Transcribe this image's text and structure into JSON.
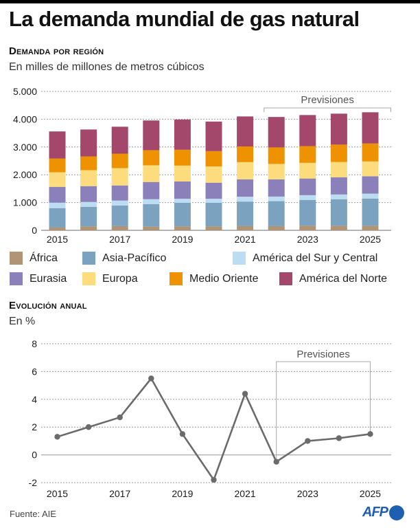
{
  "title": "La demanda mundial de gas natural",
  "section1": {
    "title": "Demanda por región",
    "subtitle": "En milles de millones de metros cúbicos"
  },
  "section2": {
    "title": "Evolución anual",
    "subtitle": "En %"
  },
  "legend": [
    {
      "label": "África",
      "color": "#b09474"
    },
    {
      "label": "Asia-Pacífico",
      "color": "#7ba3bf"
    },
    {
      "label": "América del Sur y Central",
      "color": "#bcdcf2"
    },
    {
      "label": "Eurasia",
      "color": "#8c80bb"
    },
    {
      "label": "Europa",
      "color": "#fcdc7c"
    },
    {
      "label": "Medio Oriente",
      "color": "#ef9200"
    },
    {
      "label": "América del Norte",
      "color": "#a3476b"
    }
  ],
  "source": "Fuente: AIE",
  "logo": "AFP",
  "chart_data": [
    {
      "type": "bar",
      "stacked": true,
      "title": "Demanda por región",
      "subtitle": "En milles de millones de metros cúbicos",
      "categories": [
        "2015",
        "2016",
        "2017",
        "2018",
        "2019",
        "2020",
        "2021",
        "2022",
        "2023",
        "2024",
        "2025"
      ],
      "xtick_labels": [
        "2015",
        "2017",
        "2019",
        "2021",
        "2023",
        "2025"
      ],
      "ytick_labels": [
        "0",
        "1.000",
        "2.000",
        "3.000",
        "4.000",
        "5.000"
      ],
      "ylim": [
        0,
        5000
      ],
      "yticks": [
        0,
        1000,
        2000,
        3000,
        4000,
        5000
      ],
      "grid": true,
      "annotation": {
        "label": "Previsiones",
        "from": "2022",
        "to": "2025"
      },
      "series": [
        {
          "name": "África",
          "color": "#b09474",
          "values": [
            100,
            140,
            150,
            130,
            140,
            140,
            150,
            150,
            165,
            165,
            165
          ]
        },
        {
          "name": "Asia-Pacífico",
          "color": "#7ba3bf",
          "values": [
            700,
            705,
            745,
            815,
            850,
            850,
            885,
            900,
            930,
            955,
            980
          ]
        },
        {
          "name": "América del Sur y Central",
          "color": "#bcdcf2",
          "values": [
            195,
            175,
            175,
            175,
            145,
            145,
            175,
            165,
            170,
            170,
            175
          ]
        },
        {
          "name": "Eurasia",
          "color": "#8c80bb",
          "values": [
            570,
            570,
            545,
            620,
            625,
            580,
            625,
            620,
            600,
            620,
            625
          ]
        },
        {
          "name": "Europa",
          "color": "#fcdc7c",
          "values": [
            525,
            575,
            625,
            600,
            570,
            585,
            620,
            555,
            565,
            550,
            535
          ]
        },
        {
          "name": "Medio Oriente",
          "color": "#ef9200",
          "values": [
            495,
            495,
            520,
            545,
            570,
            550,
            565,
            595,
            600,
            625,
            645
          ]
        },
        {
          "name": "América del Norte",
          "color": "#a3476b",
          "values": [
            975,
            970,
            970,
            1070,
            1090,
            1065,
            1080,
            1095,
            1120,
            1115,
            1125
          ]
        }
      ],
      "legend_position": "bottom"
    },
    {
      "type": "line",
      "title": "Evolución anual",
      "subtitle": "En %",
      "x": [
        "2015",
        "2016",
        "2017",
        "2018",
        "2019",
        "2020",
        "2021",
        "2022",
        "2023",
        "2024",
        "2025"
      ],
      "xtick_labels": [
        "2015",
        "2017",
        "2019",
        "2021",
        "2023",
        "2025"
      ],
      "ytick_labels": [
        "-2",
        "0",
        "2",
        "4",
        "6",
        "8"
      ],
      "yticks": [
        -2,
        0,
        2,
        4,
        6,
        8
      ],
      "ylim": [
        -2,
        8
      ],
      "grid": true,
      "annotation": {
        "label": "Previsiones",
        "from": "2022",
        "to": "2025"
      },
      "series": [
        {
          "name": "Evolución anual",
          "color": "#6b6b6b",
          "values": [
            1.3,
            2.0,
            2.7,
            5.5,
            1.5,
            -1.8,
            4.4,
            -0.5,
            1.0,
            1.2,
            1.5
          ]
        }
      ]
    }
  ]
}
